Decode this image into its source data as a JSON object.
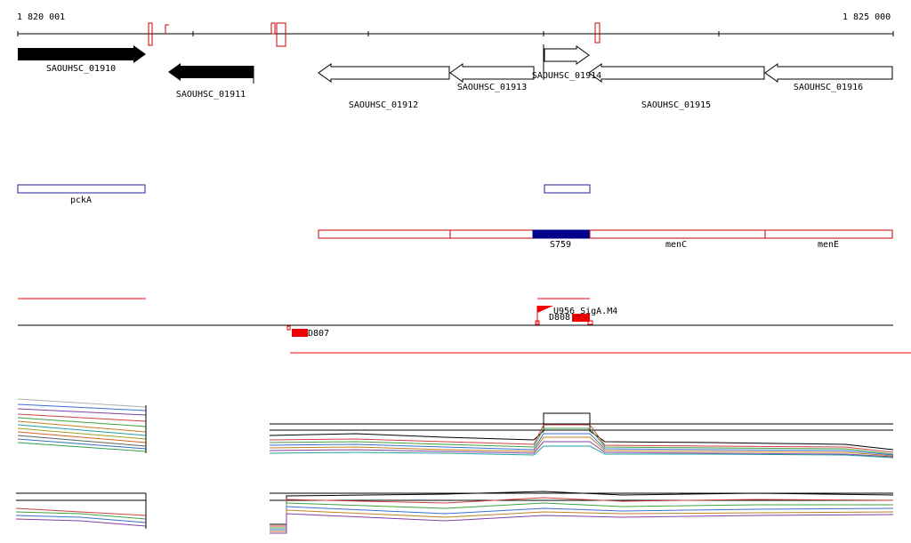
{
  "axis": {
    "start_label": "1 820 001",
    "end_label": "1 825 000"
  },
  "genes": {
    "g1910": "SAOUHSC_01910",
    "g1911": "SAOUHSC_01911",
    "g1912": "SAOUHSC_01912",
    "g1913": "SAOUHSC_01913",
    "g1914": "SAOUHSC_01914",
    "g1915": "SAOUHSC_01915",
    "g1916": "SAOUHSC_01916"
  },
  "operons": {
    "pckA": "pckA"
  },
  "transcripts": {
    "s759": "S759",
    "menC": "menC",
    "menE": "menE"
  },
  "features": {
    "d807": "D807",
    "d808": "D808",
    "sigA": "U956_SigA.M4"
  },
  "colors": {
    "gene_filled": "#000000",
    "operon_outline": "#2020a0",
    "transcript_outline": "#cc0000",
    "transcript_highlight": "#00008b",
    "feature_red": "#ee0000"
  }
}
